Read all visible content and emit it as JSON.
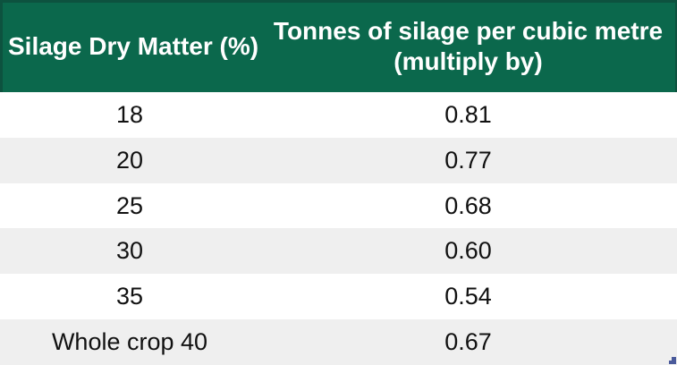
{
  "table": {
    "header": {
      "col1": "Silage Dry Matter (%)",
      "col2_line1": "Tonnes of silage per cubic metre",
      "col2_line2": "(multiply by)"
    },
    "rows": [
      {
        "dry_matter": "18",
        "factor": "0.81"
      },
      {
        "dry_matter": "20",
        "factor": "0.77"
      },
      {
        "dry_matter": "25",
        "factor": "0.68"
      },
      {
        "dry_matter": "30",
        "factor": "0.60"
      },
      {
        "dry_matter": "35",
        "factor": "0.54"
      },
      {
        "dry_matter": "Whole crop 40",
        "factor": "0.67"
      }
    ]
  },
  "chart_data": {
    "type": "table",
    "title": "",
    "columns": [
      "Silage Dry Matter (%)",
      "Tonnes of silage per cubic metre (multiply by)"
    ],
    "rows": [
      [
        "18",
        "0.81"
      ],
      [
        "20",
        "0.77"
      ],
      [
        "25",
        "0.68"
      ],
      [
        "30",
        "0.60"
      ],
      [
        "35",
        "0.54"
      ],
      [
        "Whole crop 40",
        "0.67"
      ]
    ]
  },
  "colors": {
    "header_bg": "#0b684c",
    "header_border": "#0d523f",
    "header_text": "#ffffff",
    "row_bg": "#ffffff",
    "row_alt_bg": "#efefef",
    "body_text": "#111111",
    "corner_mark": "#4a5a9b"
  }
}
